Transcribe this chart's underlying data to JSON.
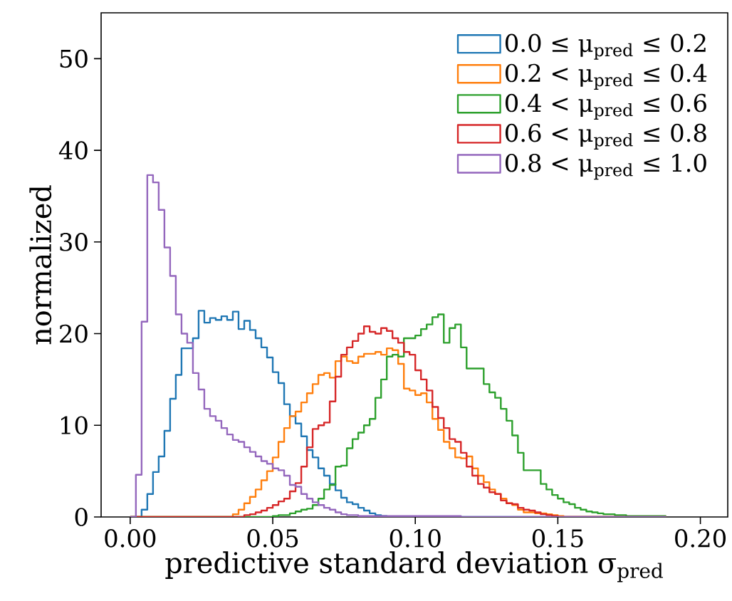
{
  "chart_data": {
    "type": "histogram",
    "xlabel": "predictive standard deviation σ$_{pred}$",
    "ylabel": "normalized",
    "bins": [
      0,
      0.002,
      0.004,
      0.006,
      0.008,
      0.01,
      0.012,
      0.014,
      0.016,
      0.018,
      0.02,
      0.022,
      0.024,
      0.026,
      0.028,
      0.03,
      0.032,
      0.034,
      0.036,
      0.038,
      0.04,
      0.042,
      0.044,
      0.046,
      0.048,
      0.05,
      0.052,
      0.054,
      0.056,
      0.058,
      0.06,
      0.062,
      0.064,
      0.066,
      0.068,
      0.07,
      0.072,
      0.074,
      0.076,
      0.078,
      0.08,
      0.082,
      0.084,
      0.086,
      0.088,
      0.09,
      0.092,
      0.094,
      0.096,
      0.098,
      0.1,
      0.102,
      0.104,
      0.106,
      0.108,
      0.11,
      0.112,
      0.114,
      0.116,
      0.118,
      0.12,
      0.122,
      0.124,
      0.126,
      0.128,
      0.13,
      0.132,
      0.134,
      0.136,
      0.138,
      0.14,
      0.142,
      0.144,
      0.146,
      0.148,
      0.15,
      0.152,
      0.154,
      0.156,
      0.158,
      0.16,
      0.162,
      0.164,
      0.166,
      0.168,
      0.17,
      0.172,
      0.174,
      0.176,
      0.178,
      0.18,
      0.182,
      0.184,
      0.186,
      0.188
    ],
    "series": [
      {
        "name": "0.0 ≤ μ$_{pred}$ ≤ 0.2",
        "color": "#1f77b4",
        "values": [
          0,
          0,
          0.8,
          2.5,
          4.9,
          6.6,
          9.4,
          12.9,
          15.5,
          18.4,
          18.4,
          19.5,
          22.5,
          21.2,
          21.7,
          21.5,
          21.9,
          21.5,
          22.4,
          20.5,
          21.4,
          20.4,
          19.5,
          18.5,
          17.4,
          15.8,
          14.6,
          12.3,
          11.0,
          10.2,
          8.8,
          7.3,
          6.5,
          5.3,
          4.5,
          3.6,
          2.9,
          2.1,
          1.6,
          1.4,
          1.0,
          0.7,
          0.4,
          0.2,
          0.1,
          0,
          0,
          0,
          0,
          0,
          0,
          0,
          0,
          0,
          0,
          0,
          0,
          0,
          0,
          0,
          0,
          0,
          0,
          0,
          0,
          0,
          0,
          0,
          0,
          0,
          0,
          0,
          0,
          0,
          0,
          0,
          0,
          0,
          0,
          0,
          0,
          0,
          0,
          0,
          0,
          0,
          0,
          0,
          0,
          0,
          0,
          0,
          0,
          0
        ]
      },
      {
        "name": "0.2 < μ$_{pred}$ ≤ 0.4",
        "color": "#ff7f0e",
        "values": [
          0,
          0,
          0,
          0,
          0,
          0,
          0,
          0,
          0,
          0,
          0,
          0,
          0,
          0,
          0,
          0,
          0,
          0,
          0.3,
          0.8,
          1.5,
          2.2,
          3.0,
          4.0,
          5.0,
          6.5,
          8.2,
          9.7,
          11.0,
          11.5,
          12.5,
          13.5,
          14.5,
          15.5,
          15.7,
          15.2,
          17.0,
          17.5,
          17.0,
          16.8,
          17.5,
          17.8,
          17.8,
          18.0,
          17.7,
          18.4,
          18.2,
          16.7,
          14.0,
          13.8,
          13.3,
          13.5,
          12.5,
          10.7,
          9.5,
          8.2,
          7.5,
          6.5,
          6.4,
          6.6,
          5.3,
          4.5,
          3.8,
          3.0,
          2.5,
          2.0,
          1.5,
          1.3,
          0.8,
          0.5,
          0.5,
          0.4,
          0.4,
          0.3,
          0.2,
          0.1,
          0,
          0,
          0,
          0,
          0,
          0,
          0,
          0,
          0,
          0,
          0,
          0,
          0,
          0,
          0,
          0,
          0,
          0
        ]
      },
      {
        "name": "0.4 < μ$_{pred}$ ≤ 0.6",
        "color": "#2ca02c",
        "values": [
          0,
          0,
          0,
          0,
          0,
          0,
          0,
          0,
          0,
          0,
          0,
          0,
          0,
          0,
          0,
          0,
          0,
          0,
          0,
          0,
          0,
          0,
          0,
          0,
          0,
          0.1,
          0.2,
          0.2,
          0.4,
          0.6,
          0.8,
          0.9,
          1.3,
          2.0,
          3.0,
          3.5,
          5.5,
          5.6,
          7.5,
          8.5,
          9.2,
          10.0,
          10.7,
          13.0,
          15.0,
          17.5,
          17.7,
          17.5,
          19.5,
          19.5,
          19.8,
          20.5,
          21.0,
          21.8,
          22.1,
          19.0,
          20.6,
          21.0,
          18.5,
          16.2,
          16.2,
          16.2,
          14.5,
          13.6,
          13.0,
          11.8,
          10.5,
          8.9,
          7.0,
          5.1,
          5.1,
          5.1,
          3.6,
          3.0,
          2.4,
          2.0,
          1.6,
          1.4,
          1.0,
          0.8,
          0.6,
          0.5,
          0.4,
          0.3,
          0.3,
          0.2,
          0.2,
          0.1,
          0.1,
          0.1,
          0.1,
          0.1,
          0.1,
          0.1
        ]
      },
      {
        "name": "0.6 < μ$_{pred}$ ≤ 0.8",
        "color": "#d62728",
        "values": [
          0,
          0,
          0,
          0,
          0,
          0,
          0,
          0,
          0,
          0,
          0,
          0,
          0,
          0,
          0,
          0,
          0,
          0,
          0,
          0,
          0.2,
          0.3,
          0.5,
          0.7,
          1.0,
          1.3,
          1.7,
          2.0,
          2.8,
          3.7,
          5.5,
          7.6,
          9.6,
          10.0,
          10.3,
          12.6,
          15.3,
          17.7,
          18.5,
          19.2,
          20.0,
          20.8,
          20.2,
          20.0,
          20.6,
          20.3,
          19.5,
          19.0,
          18.0,
          17.7,
          16.0,
          15.0,
          13.8,
          12.0,
          10.8,
          9.7,
          8.5,
          8.2,
          7.0,
          5.5,
          4.5,
          3.6,
          3.2,
          2.7,
          2.5,
          1.8,
          1.5,
          1.4,
          1.0,
          0.8,
          0.7,
          0.5,
          0.3,
          0.2,
          0.1,
          0,
          0,
          0,
          0,
          0,
          0,
          0,
          0,
          0,
          0,
          0,
          0,
          0,
          0,
          0,
          0,
          0,
          0,
          0
        ]
      },
      {
        "name": "0.8 < μ$_{pred}$ ≤ 1.0",
        "color": "#9467bd",
        "values": [
          0,
          4.6,
          21.3,
          37.3,
          36.5,
          33.5,
          29.4,
          26.3,
          22.1,
          20.0,
          19.0,
          15.7,
          13.9,
          11.8,
          11.0,
          10.5,
          9.7,
          9.0,
          8.4,
          8.2,
          7.6,
          7.1,
          6.6,
          6.1,
          5.8,
          5.3,
          5.1,
          4.5,
          3.5,
          3.3,
          2.5,
          2.0,
          1.6,
          1.3,
          1.0,
          0.8,
          0.5,
          0.3,
          0.2,
          0.2,
          0.1,
          0.1,
          0.1,
          0.1,
          0.1,
          0.1,
          0.1,
          0.1,
          0.1,
          0.1,
          0.1,
          0.1,
          0.1,
          0.1,
          0.1,
          0.1,
          0.1,
          0.1,
          0,
          0,
          0,
          0,
          0,
          0,
          0,
          0,
          0,
          0,
          0,
          0,
          0,
          0,
          0,
          0,
          0,
          0,
          0,
          0,
          0,
          0,
          0,
          0,
          0,
          0,
          0,
          0,
          0,
          0,
          0,
          0,
          0,
          0,
          0,
          0
        ]
      }
    ],
    "xlim": [
      -0.0102,
      0.2096
    ],
    "ylim": [
      0,
      55
    ],
    "xticks": [
      {
        "value": 0,
        "label": "0.00"
      },
      {
        "value": 0.05,
        "label": "0.05"
      },
      {
        "value": 0.1,
        "label": "0.10"
      },
      {
        "value": 0.15,
        "label": "0.15"
      },
      {
        "value": 0.2,
        "label": "0.20"
      }
    ],
    "yticks": [
      0,
      10,
      20,
      30,
      40,
      50
    ],
    "legend": "top right",
    "grid": false
  }
}
